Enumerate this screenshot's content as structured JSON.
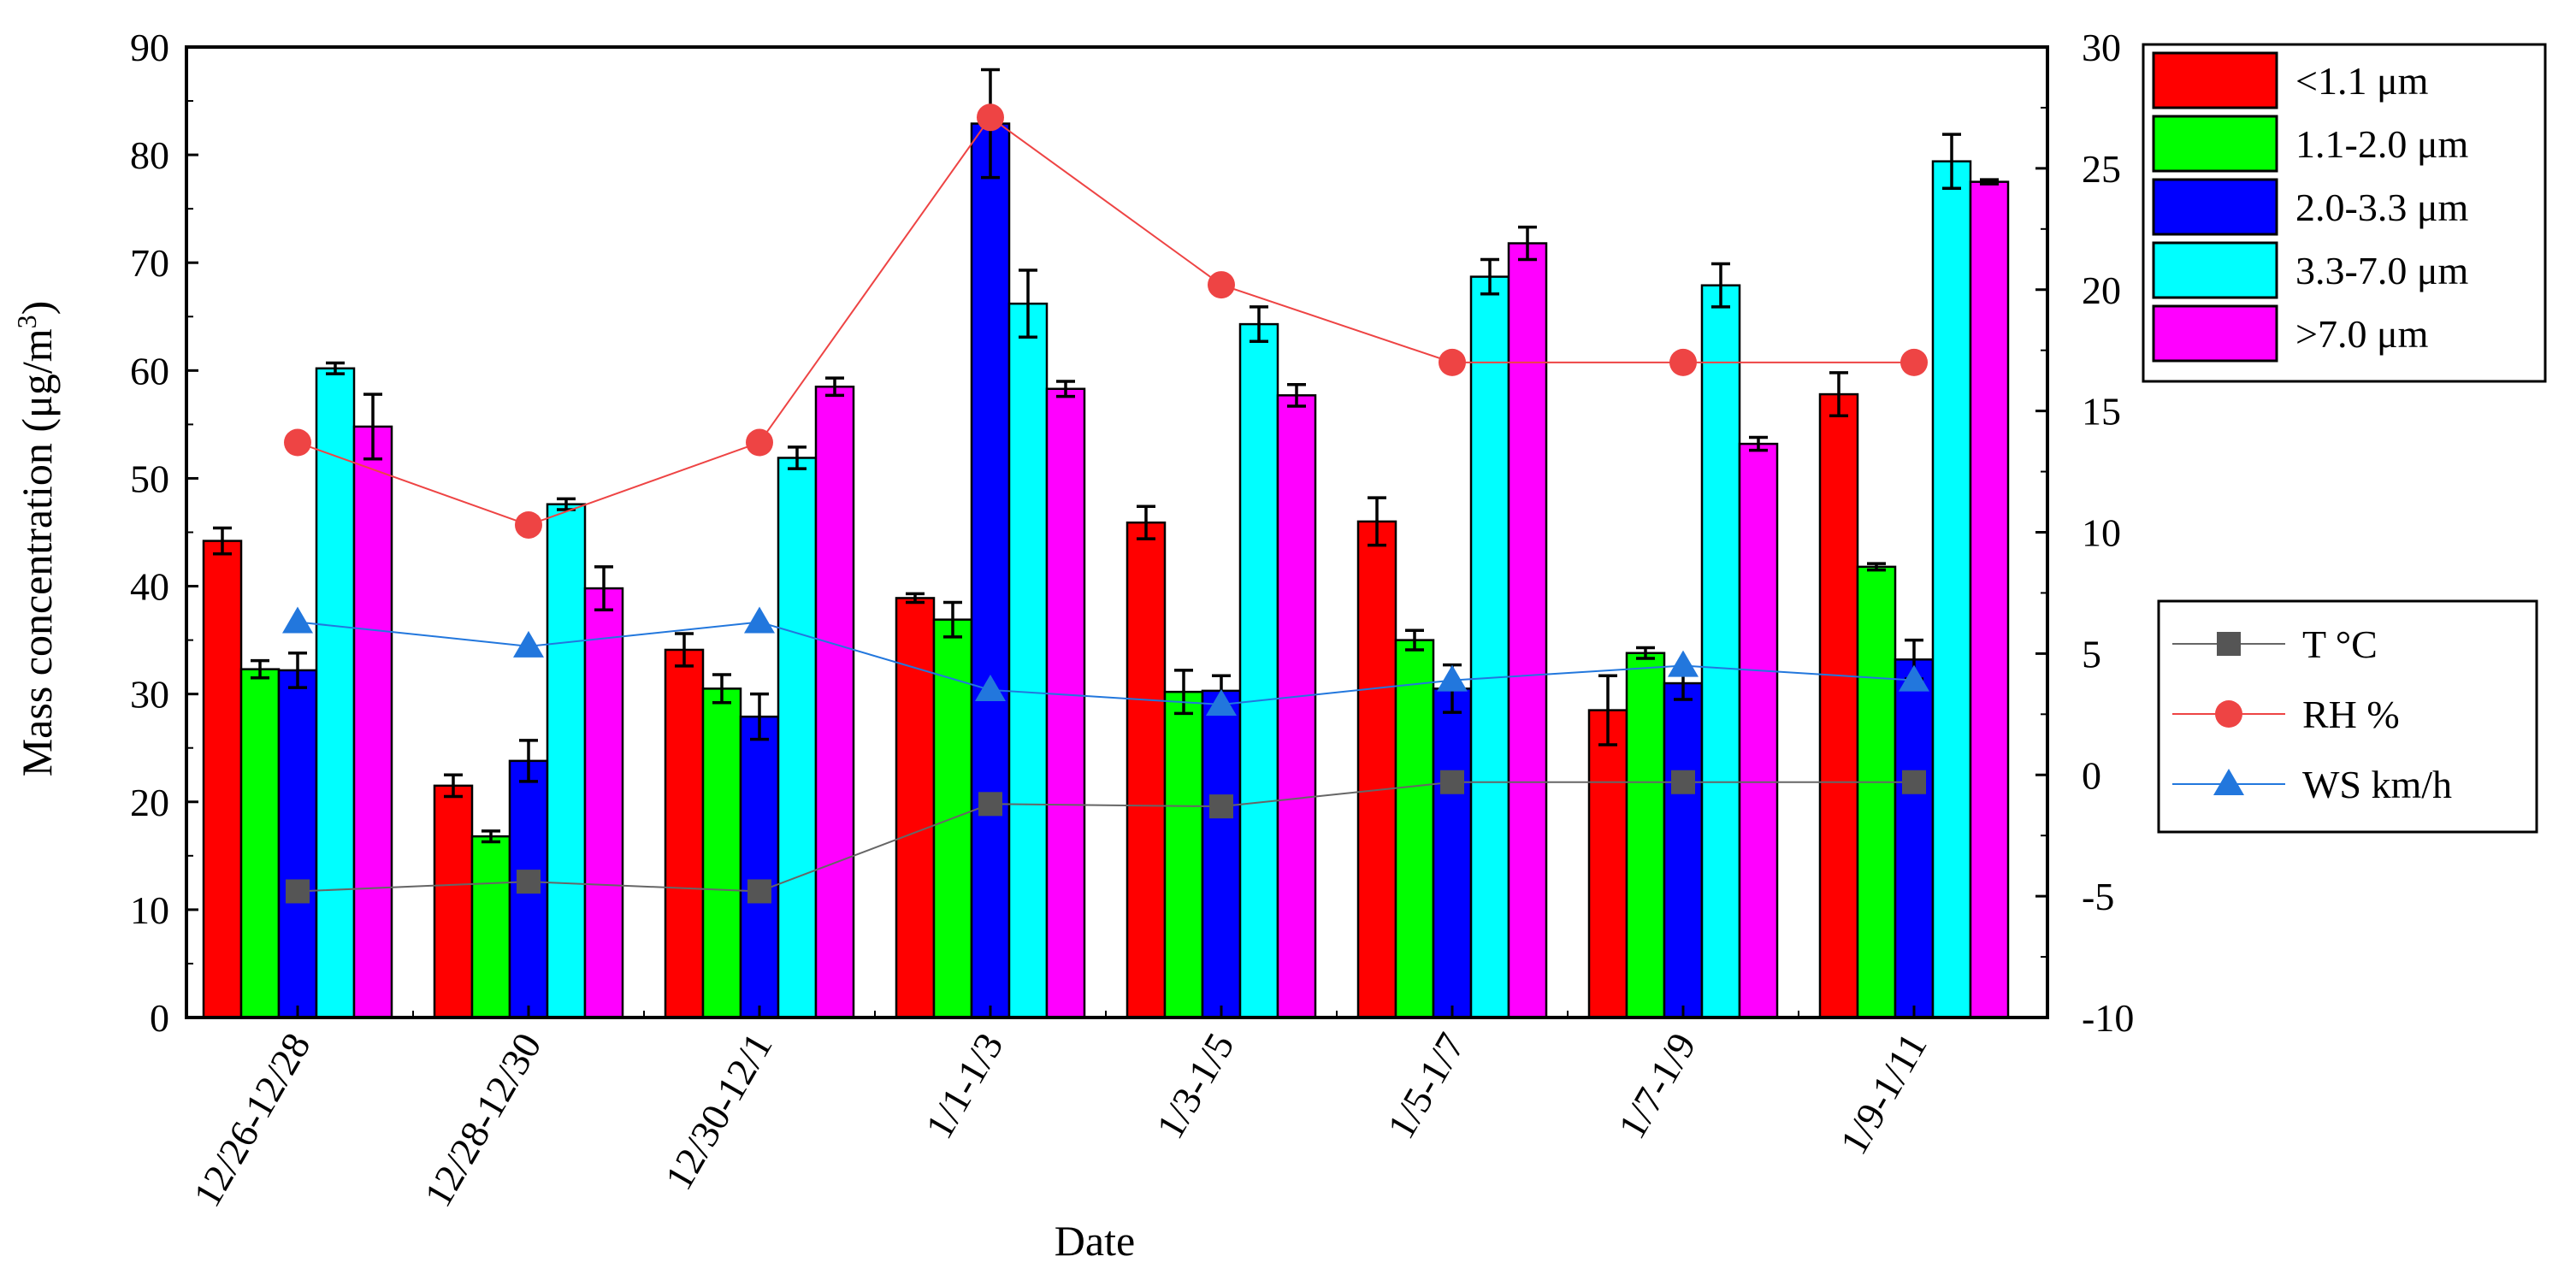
{
  "chart_data": {
    "type": "bar",
    "xlabel": "Date",
    "ylabel": "Mass concentration (μg/m",
    "ylabel_sup": "3",
    "ylabel_end": ")",
    "ylim": [
      0,
      90
    ],
    "yticks": [
      0,
      10,
      20,
      30,
      40,
      50,
      60,
      70,
      80,
      90
    ],
    "y2lim": [
      -10,
      30
    ],
    "y2ticks": [
      -10,
      -5,
      0,
      5,
      10,
      15,
      20,
      25,
      30
    ],
    "categories": [
      "12/26-12/28",
      "12/28-12/30",
      "12/30-12/1",
      "1/1-1/3",
      "1/3-1/5",
      "1/5-1/7",
      "1/7-1/9",
      "1/9-1/11"
    ],
    "series": [
      {
        "name": "<1.1 μm",
        "color": "#ff0000",
        "values": [
          44.2,
          21.5,
          34.1,
          38.9,
          45.9,
          46.0,
          28.5,
          57.8
        ],
        "errors": [
          1.2,
          1.0,
          1.5,
          0.4,
          1.5,
          2.2,
          3.2,
          2.0
        ]
      },
      {
        "name": "1.1-2.0 μm",
        "color": "#00ff00",
        "values": [
          32.3,
          16.8,
          30.5,
          36.9,
          30.2,
          35.0,
          33.8,
          41.8
        ],
        "errors": [
          0.8,
          0.5,
          1.3,
          1.6,
          2.0,
          0.9,
          0.5,
          0.3
        ]
      },
      {
        "name": "2.0-3.3 μm",
        "color": "#0000ff",
        "values": [
          32.2,
          23.8,
          27.9,
          82.9,
          30.3,
          30.5,
          31.0,
          33.2
        ],
        "errors": [
          1.6,
          1.9,
          2.1,
          5.0,
          1.4,
          2.2,
          1.5,
          1.8
        ]
      },
      {
        "name": "3.3-7.0 μm",
        "color": "#00ffff",
        "values": [
          60.2,
          47.6,
          51.9,
          66.2,
          64.3,
          68.7,
          67.9,
          79.4
        ],
        "errors": [
          0.5,
          0.5,
          1.0,
          3.1,
          1.6,
          1.6,
          2.0,
          2.5
        ]
      },
      {
        "name": ">7.0 μm",
        "color": "#ff00ff",
        "values": [
          54.8,
          39.8,
          58.5,
          58.3,
          57.7,
          71.8,
          53.2,
          77.5
        ],
        "errors": [
          3.0,
          2.0,
          0.8,
          0.7,
          1.0,
          1.5,
          0.6,
          0.2
        ]
      }
    ],
    "lines": [
      {
        "name": "T °C",
        "color": "#555555",
        "line_color": "#666666",
        "marker": "square",
        "values": [
          -4.8,
          -4.4,
          -4.8,
          -1.2,
          -1.3,
          -0.3,
          -0.3,
          -0.3
        ]
      },
      {
        "name": "RH %",
        "color": "#ee4444",
        "line_color": "#ee4444",
        "marker": "circle",
        "values": [
          13.7,
          10.3,
          13.7,
          27.1,
          20.2,
          17.0,
          17.0,
          17.0
        ]
      },
      {
        "name": "WS km/h",
        "color": "#2277dd",
        "line_color": "#2277dd",
        "marker": "triangle",
        "values": [
          6.3,
          5.3,
          6.3,
          3.5,
          2.9,
          3.9,
          4.5,
          3.9
        ]
      }
    ]
  }
}
